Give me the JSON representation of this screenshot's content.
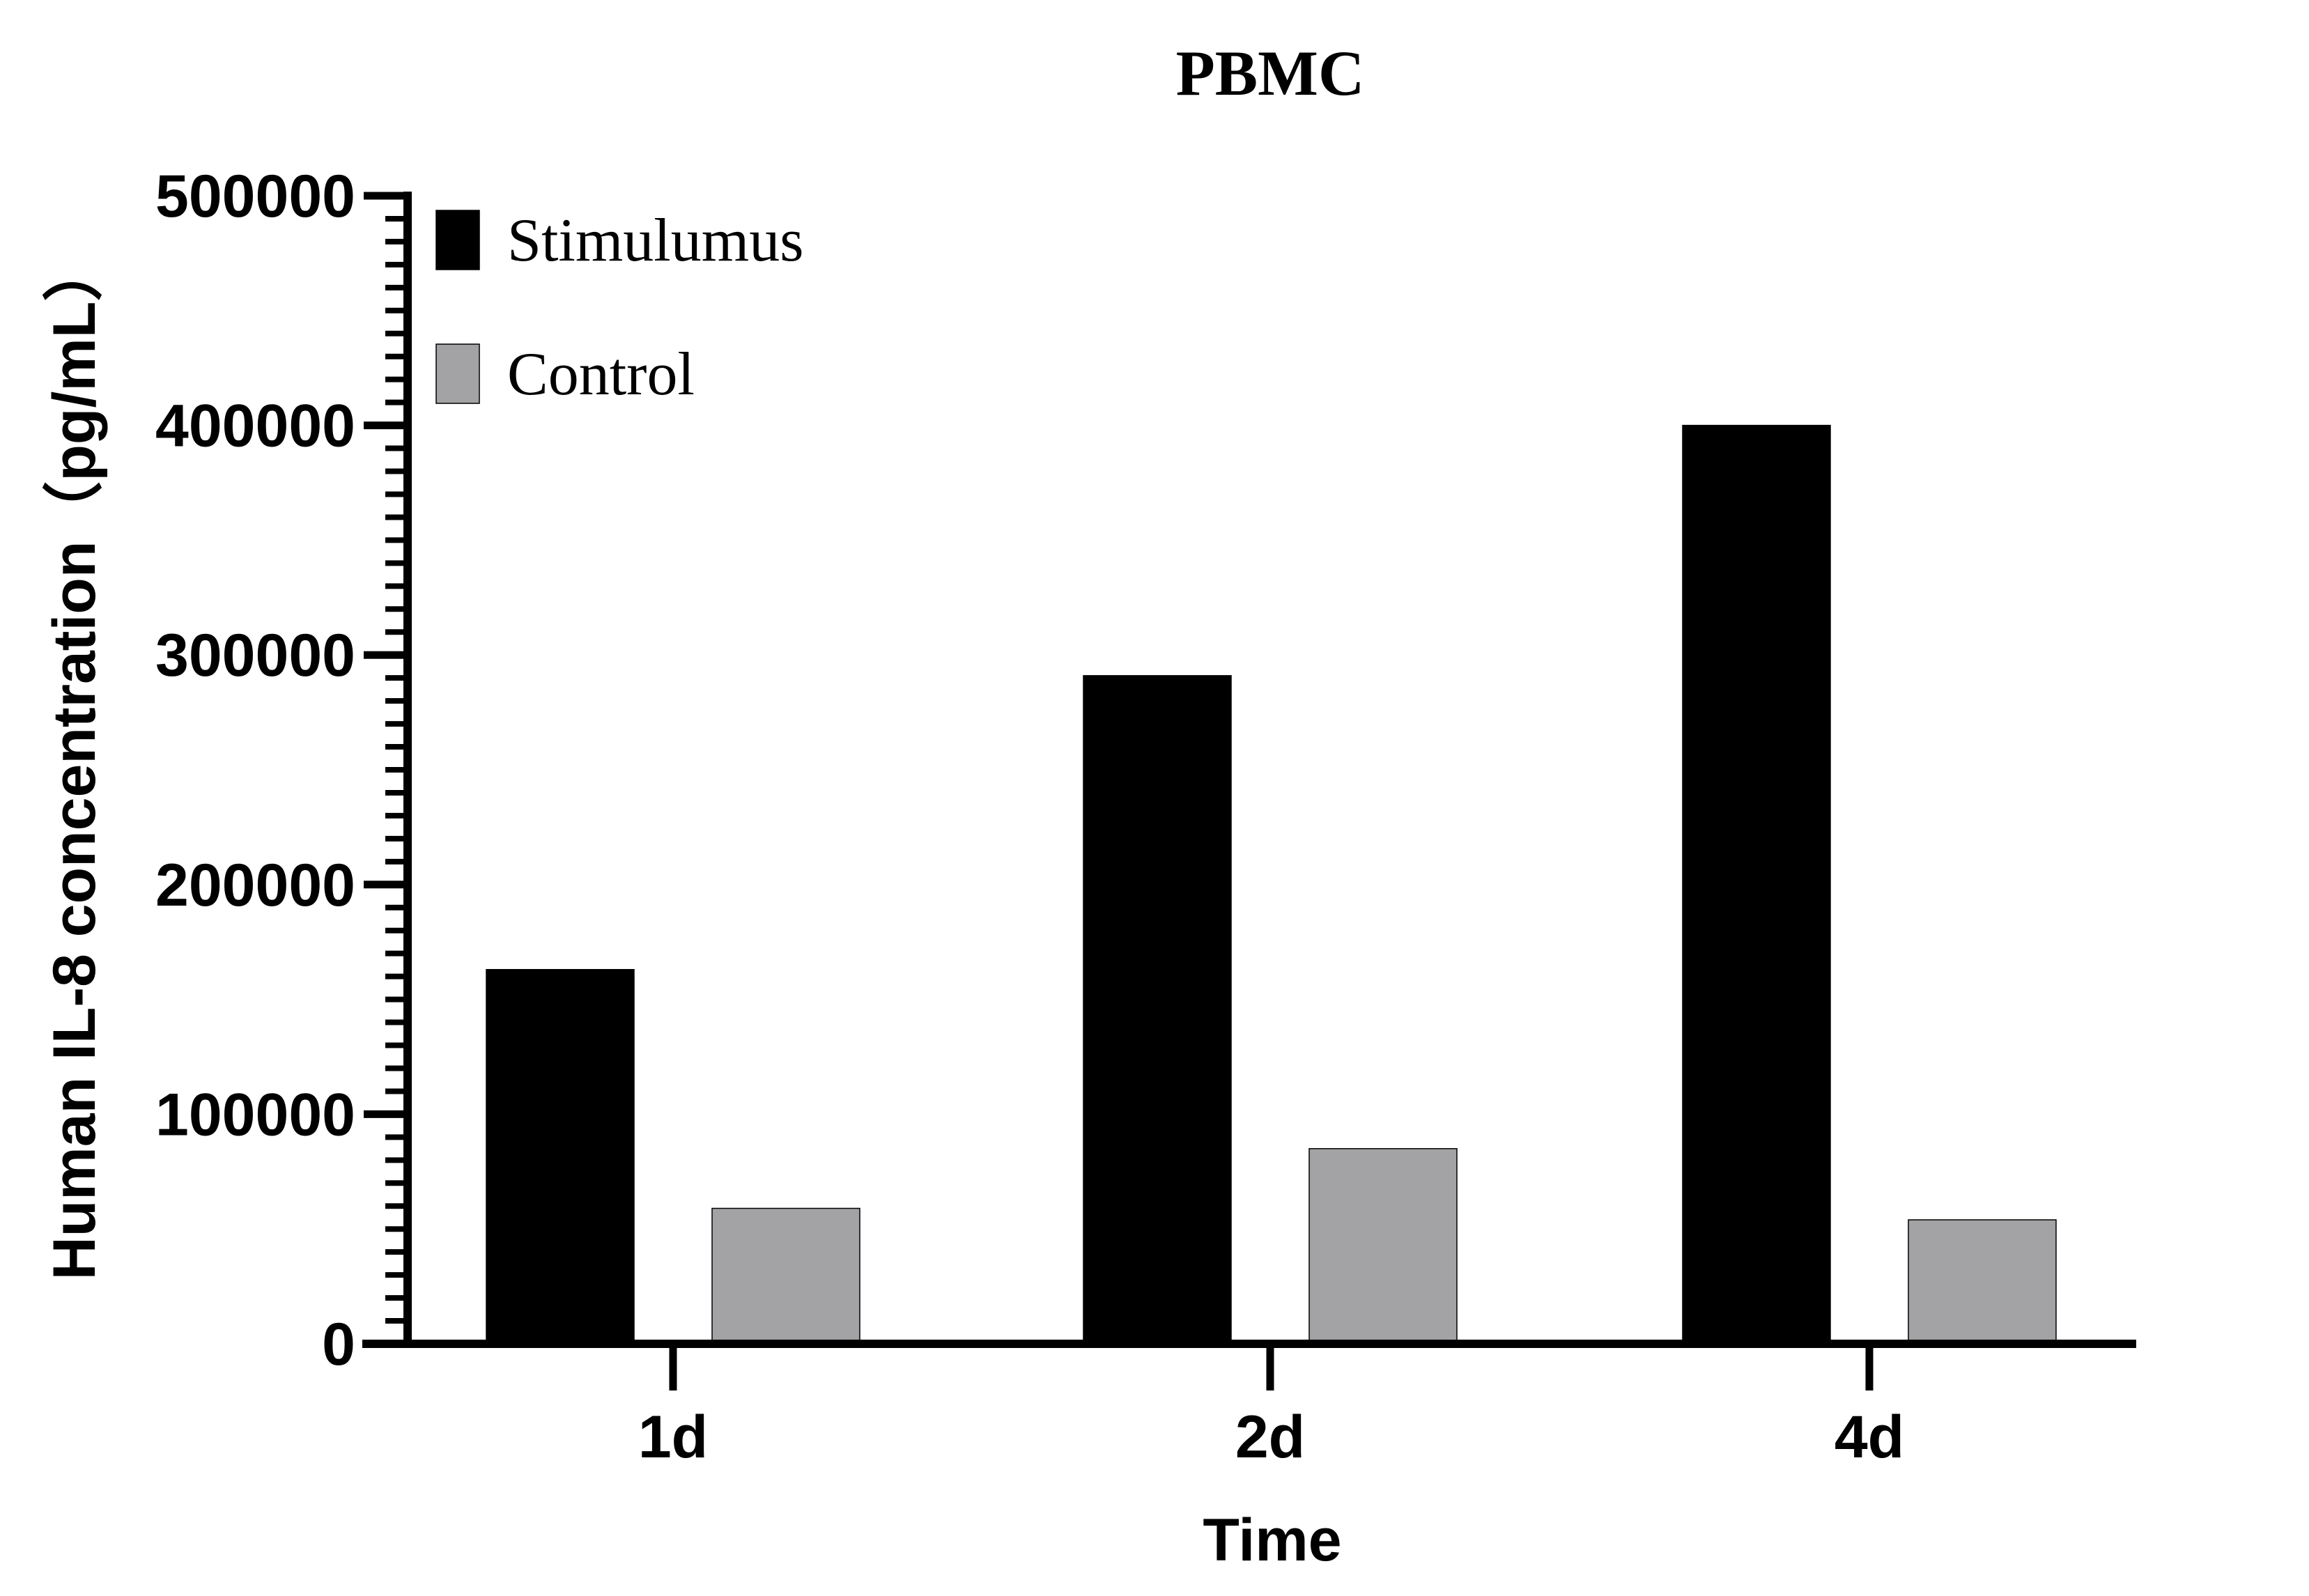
{
  "chart_data": {
    "type": "bar",
    "title": "PBMC",
    "xlabel": "Time",
    "ylabel": "Human IL-8 concentration（pg/mL）",
    "categories": [
      "1d",
      "2d",
      "4d"
    ],
    "ylim": [
      0,
      500000
    ],
    "yticks": [
      0,
      100000,
      200000,
      300000,
      400000,
      500000
    ],
    "ytick_labels": [
      "0",
      "100000",
      "200000",
      "300000",
      "400000",
      "500000"
    ],
    "minor_ticks_per_major": 10,
    "grid": false,
    "legend_position": "top-left",
    "series": [
      {
        "name": "Stimulumus",
        "color": "#000000",
        "values": [
          163000,
          291000,
          400000
        ]
      },
      {
        "name": "Control",
        "color": "#a3a3a6",
        "values": [
          59000,
          85000,
          54000
        ]
      }
    ]
  }
}
